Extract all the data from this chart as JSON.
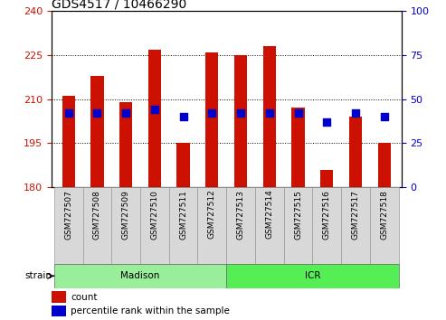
{
  "title": "GDS4517 / 10466290",
  "samples": [
    "GSM727507",
    "GSM727508",
    "GSM727509",
    "GSM727510",
    "GSM727511",
    "GSM727512",
    "GSM727513",
    "GSM727514",
    "GSM727515",
    "GSM727516",
    "GSM727517",
    "GSM727518"
  ],
  "count_values": [
    211,
    218,
    209,
    227,
    195,
    226,
    225,
    228,
    207,
    186,
    204,
    195
  ],
  "percentile_values": [
    42,
    42,
    42,
    44,
    40,
    42,
    42,
    42,
    42,
    37,
    42,
    40
  ],
  "ylim_left": [
    180,
    240
  ],
  "ylim_right": [
    0,
    100
  ],
  "yticks_left": [
    180,
    195,
    210,
    225,
    240
  ],
  "yticks_right": [
    0,
    25,
    50,
    75,
    100
  ],
  "bar_color": "#cc1100",
  "dot_color": "#0000cc",
  "bar_bottom": 180,
  "madison_count": 6,
  "icr_count": 6,
  "madison_color": "#99ee99",
  "icr_color": "#55ee55",
  "strain_label": "strain",
  "madison_label": "Madison",
  "icr_label": "ICR",
  "legend_count": "count",
  "legend_pct": "percentile rank within the sample",
  "bar_width": 0.45,
  "dot_size": 40,
  "grid_lines": [
    195,
    210,
    225
  ],
  "tick_color_left": "#cc1100",
  "tick_color_right": "#0000cc",
  "xtick_bg": "#d8d8d8",
  "tick_fontsize": 8,
  "label_fontsize": 6.5,
  "strain_fontsize": 7.5,
  "legend_fontsize": 7.5
}
